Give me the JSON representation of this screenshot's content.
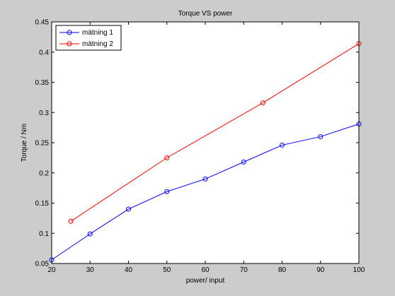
{
  "chart_data": {
    "type": "line",
    "title": "Torque VS power",
    "xlabel": "power/ input",
    "ylabel": "Torque / Nm",
    "xlim": [
      20,
      100
    ],
    "ylim": [
      0.05,
      0.45
    ],
    "xticks": [
      20,
      30,
      40,
      50,
      60,
      70,
      80,
      90,
      100
    ],
    "yticks": [
      0.05,
      0.1,
      0.15,
      0.2,
      0.25,
      0.3,
      0.35,
      0.4,
      0.45
    ],
    "xtick_labels": [
      "20",
      "30",
      "40",
      "50",
      "60",
      "70",
      "80",
      "90",
      "100"
    ],
    "ytick_labels": [
      "0.05",
      "0.1",
      "0.15",
      "0.2",
      "0.25",
      "0.3",
      "0.35",
      "0.4",
      "0.45"
    ],
    "grid": false,
    "legend_position": "top-left",
    "series": [
      {
        "name": "mätning 1",
        "color": "#0000ff",
        "marker": "circle",
        "x": [
          20,
          30,
          40,
          50,
          60,
          70,
          80,
          90,
          100
        ],
        "y": [
          0.056,
          0.099,
          0.14,
          0.169,
          0.19,
          0.218,
          0.246,
          0.26,
          0.281
        ]
      },
      {
        "name": "mätning 2",
        "color": "#ff0000",
        "marker": "circle",
        "x": [
          25,
          50,
          75,
          100
        ],
        "y": [
          0.12,
          0.225,
          0.316,
          0.414
        ]
      }
    ]
  }
}
